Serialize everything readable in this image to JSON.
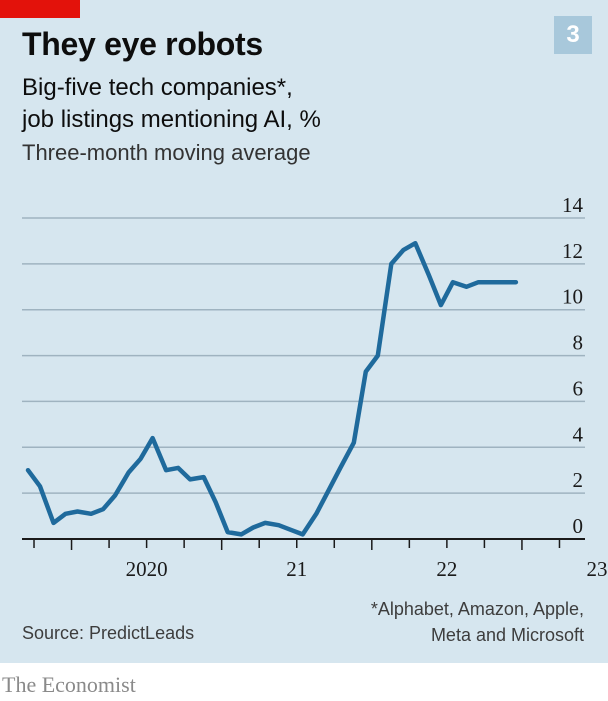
{
  "chart_number": "3",
  "title": "They eye robots",
  "subtitle_line1": "Big-five tech companies*,",
  "subtitle_line2": "job listings mentioning AI, %",
  "subtitle2": "Three-month moving average",
  "footnote_line1": "*Alphabet, Amazon, Apple,",
  "footnote_line2": "Meta and Microsoft",
  "source": "Source: PredictLeads",
  "brand": "The Economist",
  "colors": {
    "panel": "#d6e6ef",
    "line": "#1f6a9c",
    "grid": "#9fb3c0",
    "accent": "#e3120b",
    "badge": "#a8c8db"
  },
  "chart_data": {
    "type": "line",
    "title": "They eye robots",
    "subtitle": "Big-five tech companies*, job listings mentioning AI, %",
    "ylabel": "",
    "ylim": [
      0,
      14
    ],
    "yticks": [
      0,
      2,
      4,
      6,
      8,
      10,
      12,
      14
    ],
    "grid": true,
    "y_axis_side": "right",
    "x_labels": [
      {
        "label": "2020",
        "x": 2020.0
      },
      {
        "label": "21",
        "x": 2021.0
      },
      {
        "label": "22",
        "x": 2022.0
      },
      {
        "label": "23",
        "x": 2023.0
      }
    ],
    "xlim": [
      2019.67,
      2023.42
    ],
    "series": [
      {
        "x": [
          2019.71,
          2019.79,
          2019.88,
          2019.96,
          2020.04,
          2020.13,
          2020.21,
          2020.29,
          2020.38,
          2020.46,
          2020.54,
          2020.63,
          2020.71,
          2020.79,
          2020.88,
          2020.96,
          2021.04,
          2021.13,
          2021.21,
          2021.29,
          2021.38,
          2021.46,
          2021.54,
          2021.63,
          2021.71,
          2021.79,
          2021.88,
          2021.96,
          2022.04,
          2022.13,
          2022.21,
          2022.29,
          2022.38,
          2022.46,
          2022.54,
          2022.63,
          2022.71,
          2022.79,
          2022.88,
          2022.96
        ],
        "values": [
          3.0,
          2.3,
          0.7,
          1.1,
          1.2,
          1.1,
          1.3,
          1.9,
          2.9,
          3.5,
          4.4,
          3.0,
          3.1,
          2.6,
          2.7,
          1.6,
          0.3,
          0.2,
          0.5,
          0.7,
          0.6,
          0.4,
          0.2,
          1.1,
          2.1,
          3.1,
          4.2,
          7.3,
          8.0,
          12.0,
          12.6,
          12.9,
          11.5,
          10.2,
          11.2,
          11.0,
          11.2,
          11.2,
          11.2,
          11.2
        ]
      }
    ]
  }
}
